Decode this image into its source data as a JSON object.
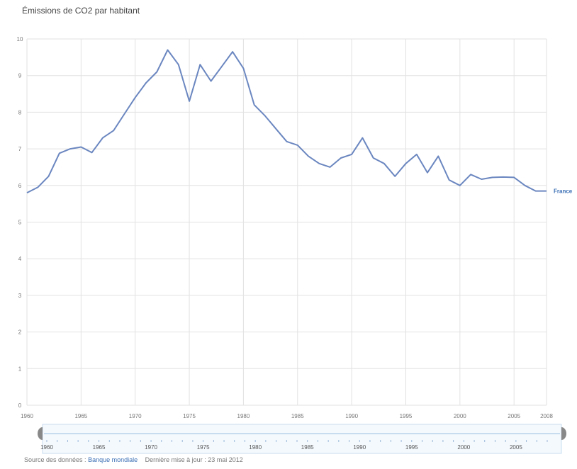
{
  "title": "Émissions de CO2 par habitant",
  "footer": {
    "source_prefix": "Source des données :",
    "source_link": "Banque mondiale",
    "update_label": "Dernière mise à jour : 23 mai 2012"
  },
  "colors": {
    "line": "#6b87c0",
    "grid": "#e2e2e2",
    "series_label": "#3b6fb5",
    "slider_border": "#c7dcef",
    "slider_fill": "#f4f9fd",
    "slider_handle": "#888888"
  },
  "chart_data": {
    "type": "line",
    "title": "Émissions de CO2 par habitant",
    "xlabel": "",
    "ylabel": "",
    "xlim": [
      1960,
      2008
    ],
    "ylim": [
      0,
      10
    ],
    "grid": true,
    "legend": "end-of-line",
    "x_ticks": [
      1960,
      1965,
      1970,
      1975,
      1980,
      1985,
      1990,
      1995,
      2000,
      2005,
      2008
    ],
    "y_ticks": [
      0,
      1,
      2,
      3,
      4,
      5,
      6,
      7,
      8,
      9,
      10
    ],
    "series": [
      {
        "name": "France",
        "x": [
          1960,
          1961,
          1962,
          1963,
          1964,
          1965,
          1966,
          1967,
          1968,
          1969,
          1970,
          1971,
          1972,
          1973,
          1974,
          1975,
          1976,
          1977,
          1978,
          1979,
          1980,
          1981,
          1982,
          1983,
          1984,
          1985,
          1986,
          1987,
          1988,
          1989,
          1990,
          1991,
          1992,
          1993,
          1994,
          1995,
          1996,
          1997,
          1998,
          1999,
          2000,
          2001,
          2002,
          2003,
          2004,
          2005,
          2006,
          2007,
          2008
        ],
        "values": [
          5.8,
          5.95,
          6.25,
          6.88,
          7.0,
          7.05,
          6.9,
          7.3,
          7.5,
          7.95,
          8.4,
          8.8,
          9.1,
          9.7,
          9.3,
          8.3,
          9.3,
          8.85,
          9.25,
          9.65,
          9.2,
          8.2,
          7.9,
          7.55,
          7.2,
          7.1,
          6.8,
          6.6,
          6.5,
          6.75,
          6.85,
          7.3,
          6.75,
          6.6,
          6.25,
          6.6,
          6.85,
          6.35,
          6.8,
          6.15,
          6.0,
          6.3,
          6.17,
          6.22,
          6.23,
          6.22,
          6.0,
          5.85,
          5.85
        ]
      }
    ]
  },
  "slider": {
    "tick_labels": [
      "1960",
      "1965",
      "1970",
      "1975",
      "1980",
      "1985",
      "1990",
      "1995",
      "2000",
      "2005"
    ]
  }
}
